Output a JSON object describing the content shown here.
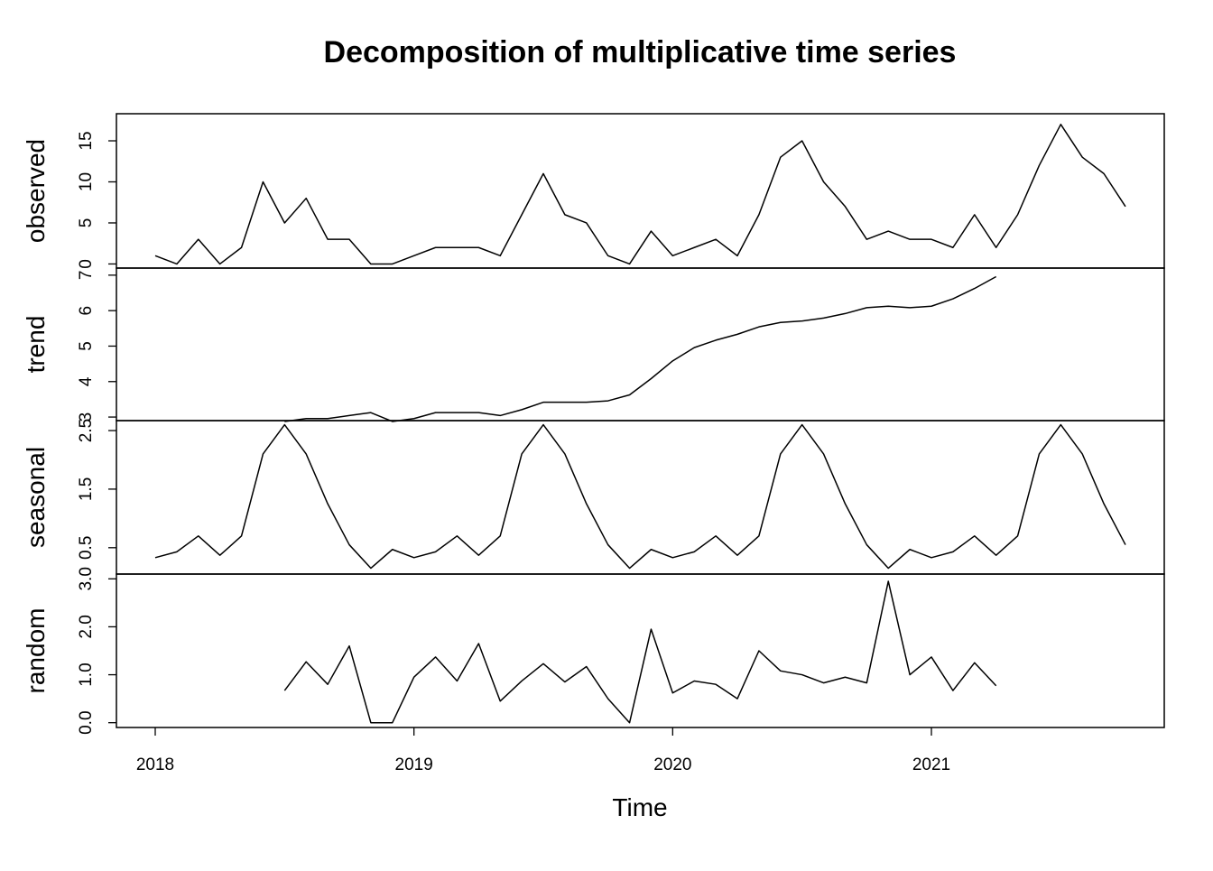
{
  "chart_data": {
    "type": "line",
    "title": "Decomposition of multiplicative time series",
    "xlabel": "Time",
    "xlim": [
      2017.85,
      2021.9
    ],
    "x_ticks": [
      {
        "value": 2018,
        "label": "2018"
      },
      {
        "value": 2019,
        "label": "2019"
      },
      {
        "value": 2020,
        "label": "2020"
      },
      {
        "value": 2021,
        "label": "2021"
      }
    ],
    "start": 2018,
    "frequency": 12,
    "panels": [
      {
        "name": "observed",
        "ylim": [
          -0.5,
          18.3
        ],
        "y_ticks": [
          {
            "value": 0,
            "label": "0"
          },
          {
            "value": 5,
            "label": "5"
          },
          {
            "value": 10,
            "label": "10"
          },
          {
            "value": 15,
            "label": "15"
          }
        ],
        "values": [
          1,
          0,
          3,
          0,
          2,
          10,
          5,
          8,
          3,
          3,
          0,
          0,
          1,
          2,
          2,
          2,
          1,
          6,
          11,
          6,
          5,
          1,
          0,
          4,
          1,
          2,
          3,
          1,
          6,
          13,
          15,
          10,
          7,
          3,
          4,
          3,
          3,
          2,
          6,
          2,
          6,
          12,
          17,
          13,
          11,
          7
        ]
      },
      {
        "name": "trend",
        "ylim": [
          2.9,
          7.2
        ],
        "y_ticks": [
          {
            "value": 3,
            "label": "3"
          },
          {
            "value": 4,
            "label": "4"
          },
          {
            "value": 5,
            "label": "5"
          },
          {
            "value": 6,
            "label": "6"
          },
          {
            "value": 7,
            "label": "7"
          }
        ],
        "values": [
          null,
          null,
          null,
          null,
          null,
          null,
          2.875,
          2.958,
          2.958,
          3.042,
          3.125,
          2.875,
          2.958,
          3.125,
          3.125,
          3.125,
          3.042,
          3.208,
          3.417,
          3.417,
          3.417,
          3.458,
          3.625,
          4.083,
          4.583,
          4.958,
          5.167,
          5.333,
          5.542,
          5.667,
          5.708,
          5.792,
          5.917,
          6.083,
          6.125,
          6.083,
          6.125,
          6.333,
          6.625,
          6.958,
          null,
          null,
          null,
          null,
          null,
          null
        ]
      },
      {
        "name": "seasonal",
        "ylim": [
          0.05,
          2.67
        ],
        "y_ticks": [
          {
            "value": 0.5,
            "label": "0.5"
          },
          {
            "value": 1.5,
            "label": "1.5"
          },
          {
            "value": 2.5,
            "label": "2.5"
          }
        ],
        "values": [
          0.33,
          0.43,
          0.7,
          0.37,
          0.7,
          2.1,
          2.6,
          2.1,
          1.25,
          0.55,
          0.15,
          0.47,
          0.33,
          0.43,
          0.7,
          0.37,
          0.7,
          2.1,
          2.6,
          2.1,
          1.25,
          0.55,
          0.15,
          0.47,
          0.33,
          0.43,
          0.7,
          0.37,
          0.7,
          2.1,
          2.6,
          2.1,
          1.25,
          0.55,
          0.15,
          0.47,
          0.33,
          0.43,
          0.7,
          0.37,
          0.7,
          2.1,
          2.6,
          2.1,
          1.25,
          0.55
        ]
      },
      {
        "name": "random",
        "ylim": [
          -0.1,
          3.1
        ],
        "y_ticks": [
          {
            "value": 0.0,
            "label": "0.0"
          },
          {
            "value": 1.0,
            "label": "1.0"
          },
          {
            "value": 2.0,
            "label": "2.0"
          },
          {
            "value": 3.0,
            "label": "3.0"
          }
        ],
        "values": [
          null,
          null,
          null,
          null,
          null,
          null,
          0.67,
          1.27,
          0.8,
          1.6,
          0.0,
          0.0,
          0.95,
          1.37,
          0.87,
          1.65,
          0.45,
          0.87,
          1.23,
          0.85,
          1.17,
          0.5,
          0.0,
          1.95,
          0.62,
          0.87,
          0.8,
          0.5,
          1.5,
          1.08,
          1.0,
          0.83,
          0.95,
          0.83,
          2.95,
          1.0,
          1.37,
          0.67,
          1.25,
          0.77,
          null,
          null,
          null,
          null,
          null,
          null
        ]
      }
    ]
  }
}
